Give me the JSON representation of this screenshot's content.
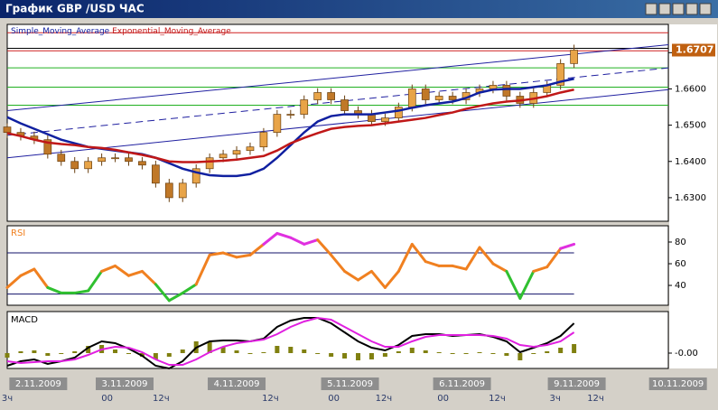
{
  "window": {
    "title": "График GBP /USD  ЧАС"
  },
  "chart_data": [
    {
      "type": "candlestick",
      "x": [
        0,
        1,
        2,
        3,
        4,
        5,
        6,
        7,
        8,
        9,
        10,
        11,
        12,
        13,
        14,
        15,
        16,
        17,
        18,
        19,
        20,
        21,
        22,
        23,
        24,
        25,
        26,
        27,
        28,
        29,
        30,
        31,
        32,
        33,
        34,
        35,
        36,
        37,
        38,
        39,
        40,
        41,
        42
      ],
      "ohlc": [
        [
          1.6495,
          1.6505,
          1.6465,
          1.648
        ],
        [
          1.648,
          1.6492,
          1.6458,
          1.647
        ],
        [
          1.647,
          1.6482,
          1.6448,
          1.646
        ],
        [
          1.646,
          1.6472,
          1.6408,
          1.642
        ],
        [
          1.642,
          1.6432,
          1.6388,
          1.64
        ],
        [
          1.64,
          1.6412,
          1.6368,
          1.638
        ],
        [
          1.638,
          1.6412,
          1.6368,
          1.64
        ],
        [
          1.64,
          1.6422,
          1.6388,
          1.641
        ],
        [
          1.641,
          1.6422,
          1.6398,
          1.641
        ],
        [
          1.641,
          1.6422,
          1.6388,
          1.64
        ],
        [
          1.64,
          1.6412,
          1.6378,
          1.639
        ],
        [
          1.639,
          1.6402,
          1.6328,
          1.634
        ],
        [
          1.634,
          1.6352,
          1.6288,
          1.63
        ],
        [
          1.63,
          1.6352,
          1.6288,
          1.634
        ],
        [
          1.634,
          1.6392,
          1.6328,
          1.638
        ],
        [
          1.638,
          1.6422,
          1.6368,
          1.641
        ],
        [
          1.641,
          1.6432,
          1.6398,
          1.642
        ],
        [
          1.642,
          1.6442,
          1.6408,
          1.643
        ],
        [
          1.643,
          1.6452,
          1.6418,
          1.644
        ],
        [
          1.644,
          1.6492,
          1.6428,
          1.648
        ],
        [
          1.648,
          1.6542,
          1.6468,
          1.653
        ],
        [
          1.653,
          1.6542,
          1.6518,
          1.653
        ],
        [
          1.653,
          1.6582,
          1.6518,
          1.657
        ],
        [
          1.657,
          1.6602,
          1.6558,
          1.659
        ],
        [
          1.659,
          1.6602,
          1.6558,
          1.657
        ],
        [
          1.657,
          1.6582,
          1.6528,
          1.654
        ],
        [
          1.654,
          1.6552,
          1.6518,
          1.653
        ],
        [
          1.653,
          1.6542,
          1.6498,
          1.651
        ],
        [
          1.651,
          1.6532,
          1.6498,
          1.652
        ],
        [
          1.652,
          1.6562,
          1.6508,
          1.655
        ],
        [
          1.655,
          1.6612,
          1.6538,
          1.66
        ],
        [
          1.66,
          1.6612,
          1.6558,
          1.657
        ],
        [
          1.657,
          1.6592,
          1.6558,
          1.658
        ],
        [
          1.658,
          1.6592,
          1.6558,
          1.657
        ],
        [
          1.657,
          1.6602,
          1.6558,
          1.659
        ],
        [
          1.659,
          1.6612,
          1.6578,
          1.66
        ],
        [
          1.66,
          1.6622,
          1.6588,
          1.661
        ],
        [
          1.661,
          1.6622,
          1.6568,
          1.658
        ],
        [
          1.658,
          1.6592,
          1.6548,
          1.656
        ],
        [
          1.656,
          1.6602,
          1.6548,
          1.659
        ],
        [
          1.659,
          1.6622,
          1.6578,
          1.661
        ],
        [
          1.661,
          1.6682,
          1.6598,
          1.667
        ],
        [
          1.667,
          1.6722,
          1.6658,
          1.6707
        ]
      ],
      "up_color": "#e8a448",
      "down_color": "#c07828",
      "outline_color": "#6a4010",
      "series": [
        {
          "name": "Simple_Moving_Average",
          "color": "#1020a0",
          "values": [
            1.6522,
            1.6505,
            1.649,
            1.6475,
            1.646,
            1.645,
            1.644,
            1.6435,
            1.643,
            1.6425,
            1.642,
            1.641,
            1.6395,
            1.638,
            1.637,
            1.6362,
            1.636,
            1.636,
            1.6365,
            1.638,
            1.641,
            1.6445,
            1.648,
            1.651,
            1.6525,
            1.653,
            1.653,
            1.653,
            1.6535,
            1.654,
            1.6548,
            1.6555,
            1.656,
            1.6565,
            1.6575,
            1.659,
            1.6598,
            1.66,
            1.66,
            1.6605,
            1.661,
            1.662,
            1.6628
          ]
        },
        {
          "name": "Exponential_Moving_Average",
          "color": "#c01818",
          "values": [
            1.6478,
            1.647,
            1.646,
            1.6452,
            1.6448,
            1.6445,
            1.644,
            1.6437,
            1.6432,
            1.6425,
            1.6418,
            1.641,
            1.64,
            1.6398,
            1.6398,
            1.64,
            1.6402,
            1.6405,
            1.641,
            1.6415,
            1.643,
            1.645,
            1.6465,
            1.6478,
            1.649,
            1.6495,
            1.6498,
            1.65,
            1.6505,
            1.651,
            1.6515,
            1.652,
            1.6528,
            1.6535,
            1.6545,
            1.6553,
            1.656,
            1.6565,
            1.6568,
            1.6573,
            1.658,
            1.659,
            1.6598
          ]
        }
      ],
      "levels": [
        {
          "value": 1.6755,
          "color": "#d02020"
        },
        {
          "value": 1.6712,
          "color": "#000000"
        },
        {
          "value": 1.6705,
          "color": "#d02020"
        },
        {
          "value": 1.6658,
          "color": "#20b020"
        },
        {
          "value": 1.6605,
          "color": "#20b020"
        },
        {
          "value": 1.6555,
          "color": "#20b020"
        }
      ],
      "trendlines": [
        {
          "x": [
            0,
            49
          ],
          "y": [
            1.654,
            1.6722
          ],
          "color": "#2020a0",
          "dashed": false
        },
        {
          "x": [
            0,
            49
          ],
          "y": [
            1.6472,
            1.6658
          ],
          "color": "#2020a0",
          "dashed": true
        },
        {
          "x": [
            0,
            49
          ],
          "y": [
            1.641,
            1.6598
          ],
          "color": "#2020a0",
          "dashed": false
        }
      ],
      "last_price": 1.6707,
      "xlim": [
        0,
        52.6
      ],
      "ylim": [
        1.6235,
        1.6778
      ],
      "yticks": [
        {
          "value": 1.63,
          "label": "1.6300"
        },
        {
          "value": 1.64,
          "label": "1.6400"
        },
        {
          "value": 1.65,
          "label": "1.6500"
        },
        {
          "value": 1.66,
          "label": "1.6600"
        },
        {
          "value": 1.67,
          "label": "1.6700"
        }
      ],
      "xticks": [
        {
          "value": 0,
          "label": "3ч"
        },
        {
          "value": 7.4,
          "label": "00"
        },
        {
          "value": 11.4,
          "label": "12ч"
        },
        {
          "value": 19.5,
          "label": "12ч"
        },
        {
          "value": 24.2,
          "label": "00"
        },
        {
          "value": 27.9,
          "label": "12ч"
        },
        {
          "value": 32.3,
          "label": "00"
        },
        {
          "value": 36.3,
          "label": "12ч"
        },
        {
          "value": 40.6,
          "label": "3ч"
        },
        {
          "value": 43.6,
          "label": "12ч"
        }
      ],
      "date_ticks": [
        {
          "value": 2.3,
          "label": "2.11.2009"
        },
        {
          "value": 8.7,
          "label": "3.11.2009"
        },
        {
          "value": 17.0,
          "label": "4.11.2009"
        },
        {
          "value": 25.4,
          "label": "5.11.2009"
        },
        {
          "value": 33.7,
          "label": "6.11.2009"
        },
        {
          "value": 42.2,
          "label": "9.11.2009"
        },
        {
          "value": 49.7,
          "label": "10.11.2009"
        }
      ]
    },
    {
      "type": "line",
      "title": "RSI",
      "color": "#f08020",
      "values": [
        38,
        49,
        55,
        38,
        33,
        33,
        35,
        53,
        58,
        49,
        53,
        41,
        26,
        33,
        41,
        68,
        70,
        66,
        68,
        78,
        88,
        84,
        78,
        82,
        68,
        53,
        45,
        53,
        38,
        53,
        78,
        62,
        58,
        58,
        55,
        75,
        60,
        53,
        28,
        53,
        57,
        74,
        78
      ],
      "zones": [
        {
          "min": 70,
          "color": "#e030e0"
        },
        {
          "max": 35,
          "color": "#30c030"
        }
      ],
      "levels": [
        70,
        32
      ],
      "level_color": "#10106a",
      "ylim": [
        21.7,
        95
      ],
      "yticks": [
        40,
        60,
        80
      ]
    },
    {
      "type": "macd",
      "title": "MACD",
      "series": [
        {
          "name": "MACD",
          "color": "#000000",
          "values": [
            -0.0014,
            -0.0009,
            -0.0007,
            -0.0012,
            -0.0009,
            -0.0005,
            0.0006,
            0.0013,
            0.0011,
            0.0005,
            -0.0003,
            -0.0014,
            -0.0017,
            -0.0009,
            0.0006,
            0.0013,
            0.0014,
            0.0014,
            0.0013,
            0.0016,
            0.0029,
            0.0036,
            0.0039,
            0.0039,
            0.0033,
            0.0023,
            0.0013,
            0.0006,
            0.0003,
            0.0009,
            0.0019,
            0.0021,
            0.0021,
            0.0019,
            0.002,
            0.0021,
            0.0018,
            0.0013,
            0.0001,
            0.0006,
            0.0011,
            0.0019,
            0.0033
          ]
        },
        {
          "name": "Signal",
          "color": "#e020e0",
          "values": [
            -0.0009,
            -0.0011,
            -0.001,
            -0.0009,
            -0.0009,
            -0.0007,
            -0.0002,
            0.0004,
            0.0007,
            0.0006,
            0.0001,
            -0.0007,
            -0.0013,
            -0.0013,
            -0.0007,
            0.0001,
            0.0007,
            0.0011,
            0.0013,
            0.0015,
            0.0021,
            0.0029,
            0.0035,
            0.0039,
            0.0037,
            0.0029,
            0.0021,
            0.0013,
            0.0007,
            0.0007,
            0.0013,
            0.0018,
            0.002,
            0.002,
            0.002,
            0.002,
            0.0019,
            0.0016,
            0.0009,
            0.0007,
            0.0009,
            0.0013,
            0.0023
          ]
        }
      ],
      "histogram": [
        -0.0005,
        0.0002,
        0.0003,
        -0.0003,
        0,
        0.0002,
        0.0008,
        0.0009,
        0.0004,
        -0.0001,
        -0.0004,
        -0.0007,
        -0.0004,
        0.0004,
        0.0013,
        0.0012,
        0.0007,
        0.0003,
        0,
        0.0001,
        0.0008,
        0.0007,
        0.0004,
        0,
        -0.0004,
        -0.0006,
        -0.0008,
        -0.0007,
        -0.0004,
        0.0002,
        0.0006,
        0.0003,
        0.0001,
        -0.0001,
        0,
        0.0001,
        -0.0001,
        -0.0003,
        -0.0008,
        -0.0001,
        0.0002,
        0.0006,
        0.001
      ],
      "histogram_color": "#808010",
      "ylim": [
        -0.0017,
        0.0046
      ],
      "yticks": [
        {
          "value": 0,
          "label": "-0.00"
        }
      ]
    }
  ]
}
